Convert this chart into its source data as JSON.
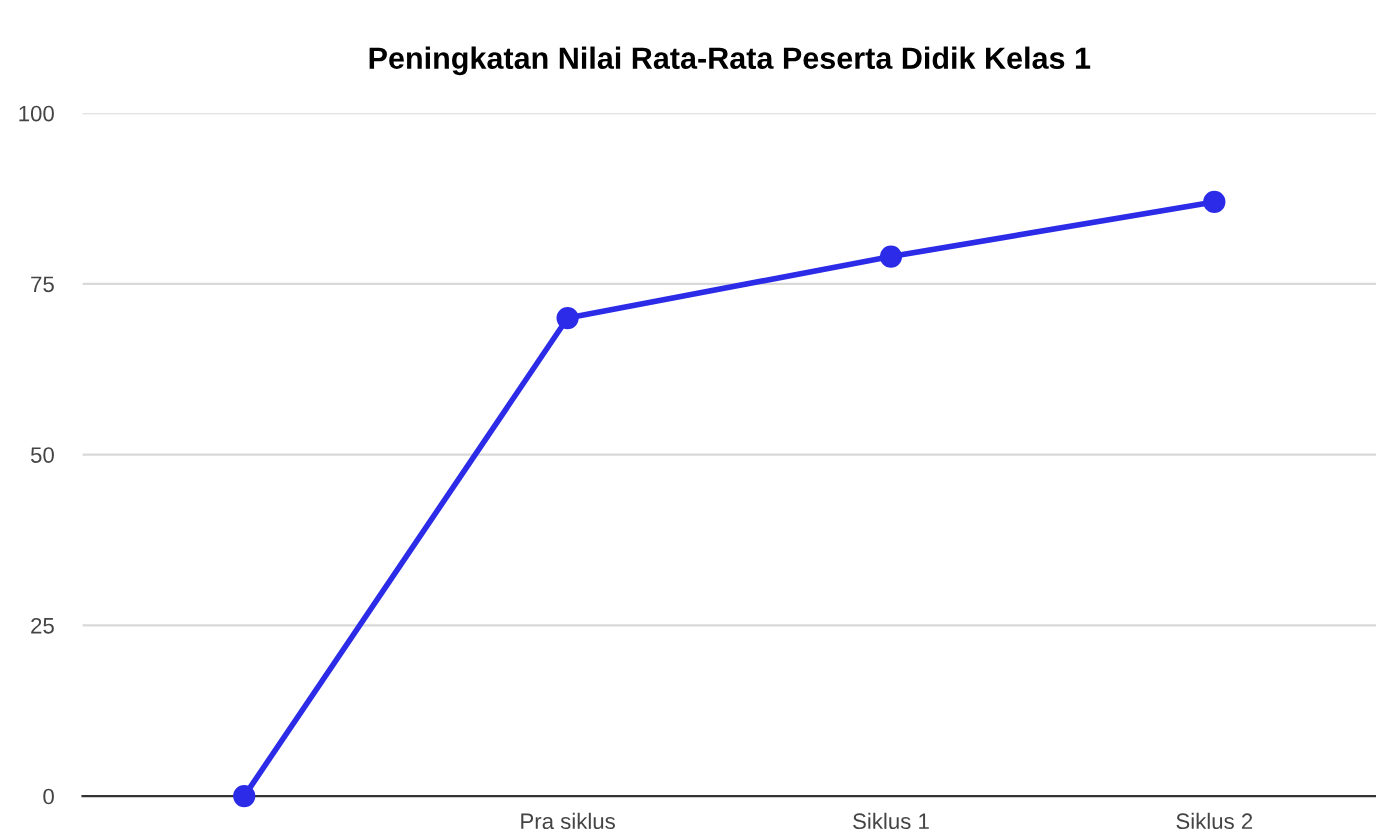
{
  "chart_data": {
    "type": "line",
    "title": "Peningkatan Nilai Rata-Rata Peserta Didik Kelas 1",
    "categories": [
      null,
      "Pra siklus",
      "Siklus 1",
      "Siklus 2"
    ],
    "series": [
      {
        "color": "#2b2be8",
        "values": [
          0,
          70,
          79,
          87
        ]
      }
    ],
    "ylim": [
      0,
      100
    ],
    "yticks": [
      0,
      25,
      50,
      75,
      100
    ],
    "grid": "y",
    "marker": "circle",
    "line_style": "solid",
    "legend": false
  }
}
